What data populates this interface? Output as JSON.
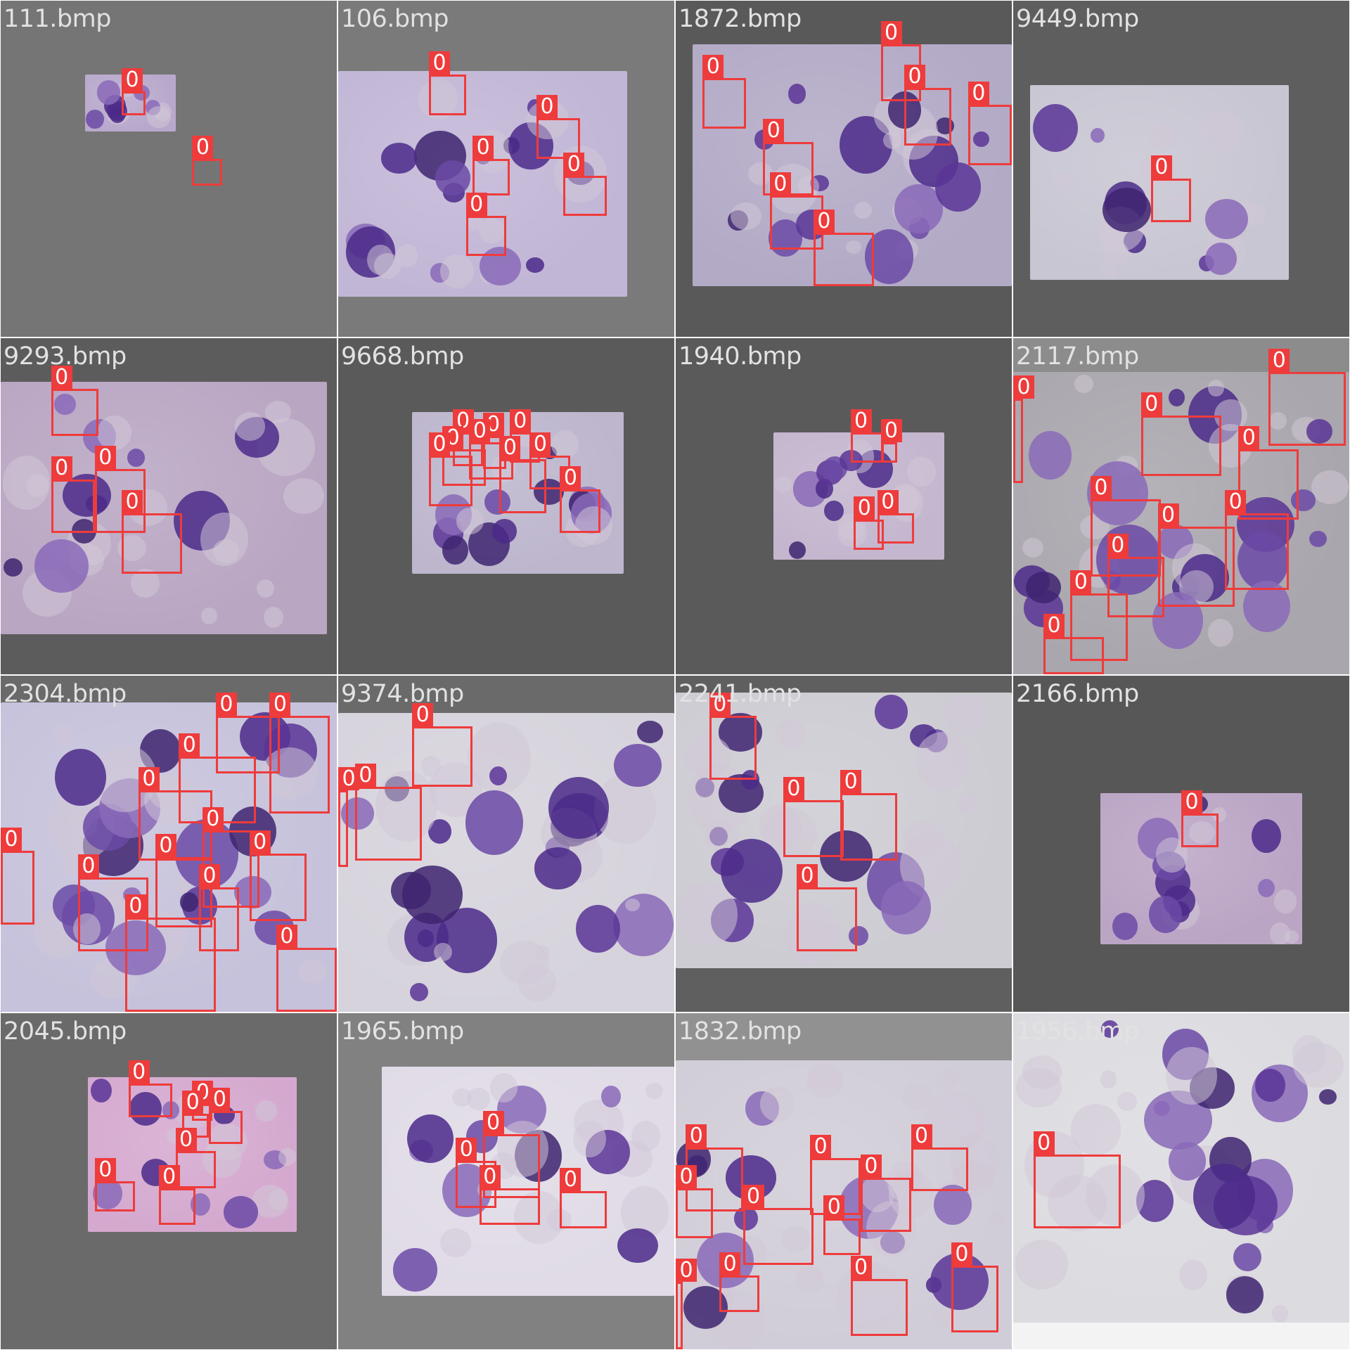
{
  "grid": {
    "tiles": [
      {
        "title": "111.bmp",
        "bg": "#757575",
        "img": [
          0.25,
          0.22,
          0.52,
          0.39
        ],
        "photo_color": "#b8a9cc",
        "boxes": [
          {
            "label": "0",
            "b": [
              0.36,
              0.27,
              0.43,
              0.34
            ]
          },
          {
            "label": "0",
            "b": [
              0.57,
              0.47,
              0.66,
              0.55
            ]
          }
        ]
      },
      {
        "title": "106.bmp",
        "bg": "#7a7a7a",
        "img": [
          0.0,
          0.21,
          0.86,
          0.88
        ],
        "photo_color": "#c2b6d6",
        "boxes": [
          {
            "label": "0",
            "b": [
              0.27,
              0.22,
              0.38,
              0.34
            ]
          },
          {
            "label": "0",
            "b": [
              0.59,
              0.35,
              0.72,
              0.47
            ]
          },
          {
            "label": "0",
            "b": [
              0.4,
              0.47,
              0.51,
              0.58
            ]
          },
          {
            "label": "0",
            "b": [
              0.67,
              0.52,
              0.8,
              0.64
            ]
          },
          {
            "label": "0",
            "b": [
              0.38,
              0.64,
              0.5,
              0.76
            ]
          }
        ]
      },
      {
        "title": "1872.bmp",
        "bg": "#595959",
        "img": [
          0.05,
          0.13,
          1.0,
          0.85
        ],
        "photo_color": "#b3aac6",
        "boxes": [
          {
            "label": "0",
            "b": [
              0.08,
              0.23,
              0.21,
              0.38
            ]
          },
          {
            "label": "0",
            "b": [
              0.61,
              0.13,
              0.73,
              0.3
            ]
          },
          {
            "label": "0",
            "b": [
              0.68,
              0.26,
              0.82,
              0.43
            ]
          },
          {
            "label": "0",
            "b": [
              0.87,
              0.31,
              1.0,
              0.49
            ]
          },
          {
            "label": "0",
            "b": [
              0.26,
              0.42,
              0.41,
              0.58
            ]
          },
          {
            "label": "0",
            "b": [
              0.28,
              0.58,
              0.44,
              0.74
            ]
          },
          {
            "label": "0",
            "b": [
              0.41,
              0.69,
              0.59,
              0.85
            ]
          }
        ]
      },
      {
        "title": "9449.bmp",
        "bg": "#5e5e5e",
        "img": [
          0.05,
          0.25,
          0.82,
          0.83
        ],
        "photo_color": "#c8c6d2",
        "boxes": [
          {
            "label": "0",
            "b": [
              0.41,
              0.53,
              0.53,
              0.66
            ]
          }
        ]
      },
      {
        "title": "9293.bmp",
        "bg": "#5c5c5c",
        "img": [
          0.0,
          0.13,
          0.97,
          0.88
        ],
        "photo_color": "#b9a6c3",
        "boxes": [
          {
            "label": "0",
            "b": [
              0.15,
              0.15,
              0.29,
              0.29
            ]
          },
          {
            "label": "0",
            "b": [
              0.28,
              0.39,
              0.43,
              0.58
            ]
          },
          {
            "label": "0",
            "b": [
              0.15,
              0.42,
              0.28,
              0.58
            ]
          },
          {
            "label": "0",
            "b": [
              0.36,
              0.52,
              0.54,
              0.7
            ]
          }
        ]
      },
      {
        "title": "9668.bmp",
        "bg": "#5a5a5a",
        "img": [
          0.22,
          0.22,
          0.85,
          0.7
        ],
        "photo_color": "#bdb6cd",
        "boxes": [
          {
            "label": "0",
            "b": [
              0.34,
              0.28,
              0.43,
              0.38
            ]
          },
          {
            "label": "0",
            "b": [
              0.43,
              0.29,
              0.5,
              0.39
            ]
          },
          {
            "label": "0",
            "b": [
              0.51,
              0.28,
              0.6,
              0.37
            ]
          },
          {
            "label": "0",
            "b": [
              0.39,
              0.31,
              0.52,
              0.42
            ]
          },
          {
            "label": "0",
            "b": [
              0.31,
              0.33,
              0.44,
              0.44
            ]
          },
          {
            "label": "0",
            "b": [
              0.57,
              0.35,
              0.69,
              0.45
            ]
          },
          {
            "label": "0",
            "b": [
              0.27,
              0.35,
              0.4,
              0.5
            ]
          },
          {
            "label": "0",
            "b": [
              0.48,
              0.36,
              0.62,
              0.52
            ]
          },
          {
            "label": "0",
            "b": [
              0.66,
              0.45,
              0.78,
              0.58
            ]
          }
        ]
      },
      {
        "title": "1940.bmp",
        "bg": "#5a5a5a",
        "img": [
          0.29,
          0.28,
          0.8,
          0.66
        ],
        "photo_color": "#c4b6ce",
        "boxes": [
          {
            "label": "0",
            "b": [
              0.52,
              0.28,
              0.62,
              0.37
            ]
          },
          {
            "label": "0",
            "b": [
              0.61,
              0.31,
              0.66,
              0.37
            ]
          },
          {
            "label": "0",
            "b": [
              0.53,
              0.54,
              0.62,
              0.63
            ]
          },
          {
            "label": "0",
            "b": [
              0.6,
              0.52,
              0.71,
              0.61
            ]
          }
        ]
      },
      {
        "title": "2117.bmp",
        "bg": "#8c8c8c",
        "img": [
          0.0,
          0.1,
          1.0,
          1.0
        ],
        "photo_color": "#a9a6ad",
        "boxes": [
          {
            "label": "0",
            "b": [
              0.0,
              0.18,
              0.03,
              0.43
            ]
          },
          {
            "label": "0",
            "b": [
              0.76,
              0.1,
              0.99,
              0.32
            ]
          },
          {
            "label": "0",
            "b": [
              0.38,
              0.23,
              0.62,
              0.41
            ]
          },
          {
            "label": "0",
            "b": [
              0.67,
              0.33,
              0.85,
              0.54
            ]
          },
          {
            "label": "0",
            "b": [
              0.23,
              0.48,
              0.44,
              0.71
            ]
          },
          {
            "label": "0",
            "b": [
              0.63,
              0.52,
              0.82,
              0.75
            ]
          },
          {
            "label": "0",
            "b": [
              0.43,
              0.56,
              0.66,
              0.8
            ]
          },
          {
            "label": "0",
            "b": [
              0.28,
              0.65,
              0.45,
              0.83
            ]
          },
          {
            "label": "0",
            "b": [
              0.17,
              0.76,
              0.34,
              0.96
            ]
          },
          {
            "label": "0",
            "b": [
              0.09,
              0.89,
              0.27,
              1.0
            ]
          }
        ]
      },
      {
        "title": "2304.bmp",
        "bg": "#6a6a6a",
        "img": [
          0.0,
          0.08,
          1.0,
          1.0
        ],
        "photo_color": "#c6c2db",
        "boxes": [
          {
            "label": "0",
            "b": [
              0.64,
              0.12,
              0.83,
              0.29
            ]
          },
          {
            "label": "0",
            "b": [
              0.8,
              0.12,
              0.98,
              0.41
            ]
          },
          {
            "label": "0",
            "b": [
              0.53,
              0.24,
              0.76,
              0.44
            ]
          },
          {
            "label": "0",
            "b": [
              0.41,
              0.34,
              0.63,
              0.55
            ]
          },
          {
            "label": "0",
            "b": [
              0.6,
              0.46,
              0.77,
              0.69
            ]
          },
          {
            "label": "0",
            "b": [
              0.46,
              0.54,
              0.63,
              0.75
            ]
          },
          {
            "label": "0",
            "b": [
              0.74,
              0.53,
              0.91,
              0.73
            ]
          },
          {
            "label": "0",
            "b": [
              0.0,
              0.52,
              0.1,
              0.74
            ]
          },
          {
            "label": "0",
            "b": [
              0.23,
              0.6,
              0.44,
              0.82
            ]
          },
          {
            "label": "0",
            "b": [
              0.59,
              0.63,
              0.71,
              0.82
            ]
          },
          {
            "label": "0",
            "b": [
              0.37,
              0.72,
              0.64,
              1.0
            ]
          },
          {
            "label": "0",
            "b": [
              0.82,
              0.81,
              1.0,
              1.0
            ]
          }
        ]
      },
      {
        "title": "9374.bmp",
        "bg": "#6a6a6a",
        "img": [
          0.0,
          0.11,
          1.0,
          1.0
        ],
        "photo_color": "#d6d3dc",
        "boxes": [
          {
            "label": "0",
            "b": [
              0.22,
              0.15,
              0.4,
              0.33
            ]
          },
          {
            "label": "0",
            "b": [
              0.0,
              0.34,
              0.03,
              0.57
            ]
          },
          {
            "label": "0",
            "b": [
              0.05,
              0.33,
              0.25,
              0.55
            ]
          }
        ]
      },
      {
        "title": "2241.bmp",
        "bg": "#5f5f5f",
        "img": [
          0.0,
          0.05,
          1.0,
          0.87
        ],
        "photo_color": "#cdccd3",
        "boxes": [
          {
            "label": "0",
            "b": [
              0.1,
              0.12,
              0.24,
              0.31
            ]
          },
          {
            "label": "0",
            "b": [
              0.32,
              0.37,
              0.5,
              0.54
            ]
          },
          {
            "label": "0",
            "b": [
              0.49,
              0.35,
              0.66,
              0.55
            ]
          },
          {
            "label": "0",
            "b": [
              0.36,
              0.63,
              0.54,
              0.82
            ]
          }
        ]
      },
      {
        "title": "2166.bmp",
        "bg": "#575757",
        "img": [
          0.26,
          0.35,
          0.86,
          0.8
        ],
        "photo_color": "#bba5c5",
        "boxes": [
          {
            "label": "0",
            "b": [
              0.5,
              0.41,
              0.61,
              0.51
            ]
          }
        ]
      },
      {
        "title": "2045.bmp",
        "bg": "#6a6a6a",
        "img": [
          0.26,
          0.19,
          0.88,
          0.65
        ],
        "photo_color": "#d5a9cf",
        "boxes": [
          {
            "label": "0",
            "b": [
              0.38,
              0.21,
              0.51,
              0.31
            ]
          },
          {
            "label": "0",
            "b": [
              0.57,
              0.27,
              0.63,
              0.32
            ]
          },
          {
            "label": "0",
            "b": [
              0.62,
              0.29,
              0.72,
              0.39
            ]
          },
          {
            "label": "0",
            "b": [
              0.54,
              0.3,
              0.62,
              0.37
            ]
          },
          {
            "label": "0",
            "b": [
              0.52,
              0.41,
              0.64,
              0.52
            ]
          },
          {
            "label": "0",
            "b": [
              0.28,
              0.5,
              0.4,
              0.59
            ]
          },
          {
            "label": "0",
            "b": [
              0.47,
              0.52,
              0.58,
              0.63
            ]
          }
        ]
      },
      {
        "title": "1965.bmp",
        "bg": "#818181",
        "img": [
          0.13,
          0.16,
          1.0,
          0.84
        ],
        "photo_color": "#e0dbe6",
        "boxes": [
          {
            "label": "0",
            "b": [
              0.43,
              0.36,
              0.6,
              0.55
            ]
          },
          {
            "label": "0",
            "b": [
              0.35,
              0.44,
              0.47,
              0.58
            ]
          },
          {
            "label": "0",
            "b": [
              0.42,
              0.52,
              0.6,
              0.63
            ]
          },
          {
            "label": "0",
            "b": [
              0.66,
              0.53,
              0.8,
              0.64
            ]
          }
        ]
      },
      {
        "title": "1832.bmp",
        "bg": "#919191",
        "img": [
          0.0,
          0.14,
          1.0,
          1.0
        ],
        "photo_color": "#d1cdd8",
        "boxes": [
          {
            "label": "0",
            "b": [
              0.03,
              0.4,
              0.2,
              0.59
            ]
          },
          {
            "label": "0",
            "b": [
              0.4,
              0.43,
              0.55,
              0.6
            ]
          },
          {
            "label": "0",
            "b": [
              0.7,
              0.4,
              0.87,
              0.53
            ]
          },
          {
            "label": "0",
            "b": [
              0.55,
              0.49,
              0.7,
              0.65
            ]
          },
          {
            "label": "0",
            "b": [
              0.0,
              0.52,
              0.11,
              0.67
            ]
          },
          {
            "label": "0",
            "b": [
              0.2,
              0.58,
              0.41,
              0.75
            ]
          },
          {
            "label": "0",
            "b": [
              0.44,
              0.61,
              0.55,
              0.72
            ]
          },
          {
            "label": "0",
            "b": [
              0.0,
              0.8,
              0.02,
              1.0
            ]
          },
          {
            "label": "0",
            "b": [
              0.13,
              0.78,
              0.25,
              0.89
            ]
          },
          {
            "label": "0",
            "b": [
              0.52,
              0.79,
              0.69,
              0.96
            ]
          },
          {
            "label": "0",
            "b": [
              0.82,
              0.75,
              0.96,
              0.95
            ]
          }
        ]
      },
      {
        "title": "1956.bmp",
        "bg": "#f3f3f3",
        "img": [
          0.0,
          0.0,
          1.0,
          0.92
        ],
        "photo_color": "#dcdbe0",
        "boxes": [
          {
            "label": "0",
            "b": [
              0.06,
              0.42,
              0.32,
              0.64
            ]
          }
        ]
      }
    ]
  },
  "colors": {
    "box": "#ee3b3b",
    "label_text": "#ffffff",
    "title_text": "#e2e2e2",
    "divider": "#ffffff"
  }
}
